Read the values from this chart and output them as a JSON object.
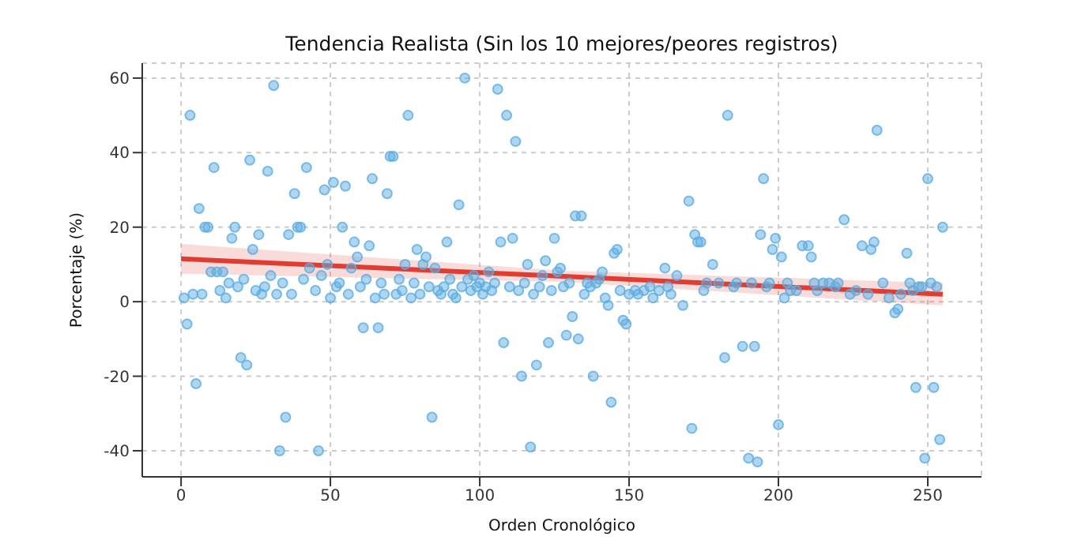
{
  "chart_data": {
    "type": "scatter",
    "title": "Tendencia Realista (Sin los 10 mejores/peores registros)",
    "xlabel": "Orden Cronológico",
    "ylabel": "Porcentaje (%)",
    "xlim": [
      -13,
      268
    ],
    "ylim": [
      -47,
      64
    ],
    "xticks": [
      0,
      50,
      100,
      150,
      200,
      250
    ],
    "yticks": [
      -40,
      -20,
      0,
      20,
      40,
      60
    ],
    "grid": true,
    "series": [
      {
        "marker": "circle",
        "color": "#5dade2",
        "x": [
          1,
          2,
          3,
          4,
          5,
          6,
          7,
          8,
          9,
          10,
          11,
          12,
          13,
          14,
          15,
          16,
          17,
          18,
          19,
          20,
          21,
          22,
          23,
          24,
          25,
          26,
          27,
          28,
          29,
          30,
          31,
          32,
          33,
          34,
          35,
          36,
          37,
          38,
          39,
          40,
          41,
          42,
          43,
          45,
          46,
          47,
          48,
          49,
          50,
          51,
          52,
          53,
          54,
          55,
          56,
          57,
          58,
          59,
          60,
          61,
          62,
          63,
          64,
          65,
          66,
          67,
          68,
          69,
          70,
          71,
          72,
          73,
          74,
          75,
          76,
          77,
          78,
          79,
          80,
          81,
          82,
          83,
          84,
          85,
          86,
          87,
          88,
          89,
          90,
          91,
          92,
          93,
          94,
          95,
          96,
          97,
          98,
          99,
          100,
          101,
          102,
          103,
          104,
          105,
          106,
          107,
          108,
          109,
          110,
          111,
          112,
          113,
          114,
          115,
          116,
          117,
          118,
          119,
          120,
          121,
          122,
          123,
          124,
          125,
          126,
          127,
          128,
          129,
          130,
          131,
          132,
          133,
          134,
          135,
          136,
          137,
          138,
          139,
          140,
          141,
          142,
          143,
          144,
          145,
          146,
          147,
          148,
          149,
          150,
          152,
          153,
          155,
          157,
          158,
          160,
          162,
          163,
          164,
          166,
          168,
          170,
          171,
          172,
          173,
          174,
          175,
          176,
          178,
          180,
          182,
          183,
          185,
          186,
          188,
          190,
          191,
          192,
          193,
          194,
          195,
          196,
          197,
          198,
          199,
          200,
          201,
          202,
          203,
          204,
          206,
          208,
          210,
          211,
          212,
          213,
          215,
          217,
          219,
          220,
          222,
          224,
          226,
          228,
          230,
          231,
          232,
          233,
          235,
          237,
          239,
          240,
          241,
          243,
          244,
          245,
          246,
          247,
          248,
          249,
          250,
          251,
          252,
          253,
          254,
          255
        ],
        "values": [
          1,
          -6,
          50,
          2,
          -22,
          25,
          2,
          20,
          20,
          8,
          36,
          8,
          3,
          8,
          1,
          5,
          17,
          20,
          4,
          -15,
          6,
          -17,
          38,
          14,
          3,
          18,
          2,
          4,
          35,
          7,
          58,
          2,
          -40,
          5,
          -31,
          18,
          2,
          29,
          20,
          20,
          6,
          36,
          9,
          3,
          -40,
          7,
          30,
          10,
          1,
          32,
          4,
          5,
          20,
          31,
          2,
          9,
          16,
          12,
          4,
          -7,
          6,
          15,
          33,
          1,
          -7,
          5,
          2,
          29,
          39,
          39,
          2,
          6,
          3,
          10,
          50,
          1,
          5,
          14,
          2,
          10,
          12,
          4,
          -31,
          9,
          3,
          2,
          4,
          16,
          6,
          2,
          1,
          26,
          4,
          60,
          6,
          3,
          7,
          4,
          5,
          2,
          4,
          8,
          3,
          5,
          57,
          16,
          -11,
          50,
          4,
          17,
          43,
          3,
          -20,
          5,
          10,
          -39,
          2,
          -17,
          4,
          7,
          11,
          -11,
          3,
          17,
          8,
          9,
          4,
          -9,
          5,
          -4,
          23,
          -10,
          23,
          2,
          5,
          4,
          -20,
          5,
          6,
          8,
          1,
          -1,
          -27,
          13,
          14,
          3,
          -5,
          -6,
          2,
          3,
          2,
          3,
          4,
          1,
          3,
          9,
          4,
          2,
          7,
          -1,
          27,
          -34,
          18,
          16,
          16,
          3,
          5,
          10,
          5,
          -15,
          50,
          4,
          5,
          -12,
          -42,
          5,
          -12,
          -43,
          18,
          33,
          4,
          5,
          14,
          17,
          -33,
          12,
          1,
          5,
          3,
          3,
          15,
          15,
          12,
          5,
          3,
          5,
          5,
          4,
          5,
          22,
          2,
          3,
          15,
          2,
          14,
          16,
          46,
          5,
          1,
          -3,
          -2,
          2,
          13,
          5,
          3,
          -23,
          4,
          4,
          -42,
          33,
          5,
          -23,
          4,
          -37,
          20
        ]
      },
      {
        "type": "line",
        "color": "#e03c31",
        "x": [
          0,
          128,
          255
        ],
        "values": [
          11.5,
          6.8,
          2
        ],
        "lower": [
          7.5,
          5.3,
          -1
        ],
        "upper": [
          15.5,
          8.3,
          5
        ]
      }
    ]
  }
}
